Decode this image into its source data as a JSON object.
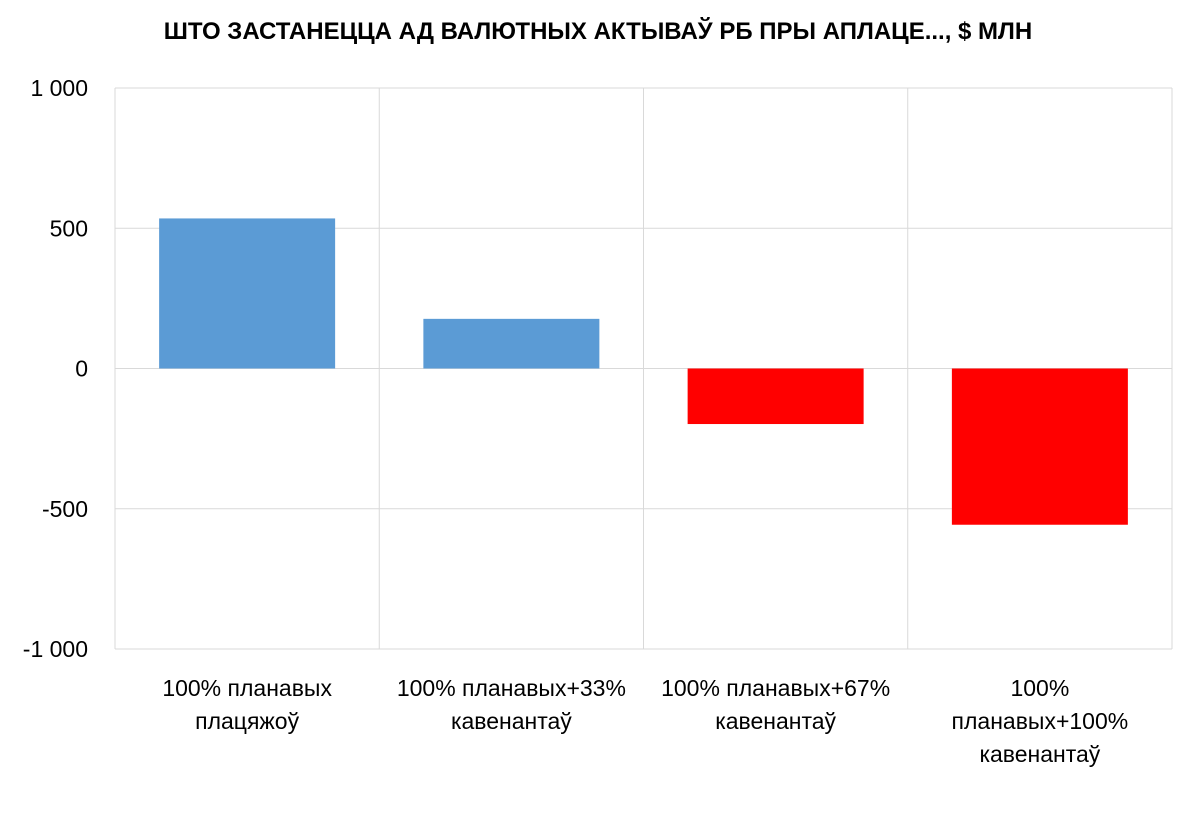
{
  "chart_data": {
    "type": "bar",
    "title": "ШТО ЗАСТАНЕЦЦА АД ВАЛЮТНЫХ АКТЫВАЎ РБ ПРЫ АПЛАЦЕ..., $ МЛН",
    "xlabel": "",
    "ylabel": "",
    "categories": [
      "100% планавых плацяжоў",
      "100% планавых+33% кавенантаў",
      "100% планавых+67% кавенантаў",
      "100% планавых+100% кавенантаў"
    ],
    "category_lines": [
      [
        "100% планавых",
        "плацяжоў"
      ],
      [
        "100% планавых+33%",
        "кавенантаў"
      ],
      [
        "100% планавых+67%",
        "кавенантаў"
      ],
      [
        "100%",
        "планавых+100%",
        "кавенантаў"
      ]
    ],
    "values": [
      535,
      177,
      -198,
      -557
    ],
    "ylim": [
      -1000,
      1000
    ],
    "yticks": [
      1000,
      500,
      0,
      -500,
      -1000
    ],
    "ytick_labels": [
      "1 000",
      "500",
      "0",
      "-500",
      "-1 000"
    ],
    "grid": true,
    "legend": "none",
    "colors": {
      "positive": "#5b9bd5",
      "negative": "#ff0000",
      "grid": "#d9d9d9"
    }
  }
}
